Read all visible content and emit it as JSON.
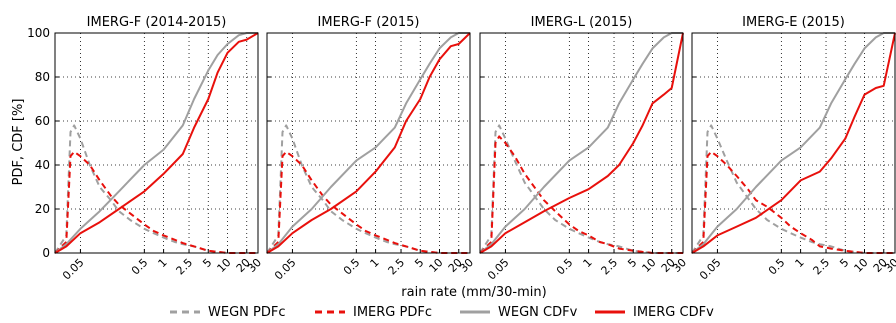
{
  "figure": {
    "ylabel": "PDF, CDF [%]",
    "xlabel": "rain rate (mm/30-min)",
    "legend_placement": "bottom-center",
    "legend": [
      {
        "label": "WEGN PDFc",
        "color": "#a0a0a0",
        "dash": true
      },
      {
        "label": "IMERG PDFc",
        "color": "#e8100c",
        "dash": true
      },
      {
        "label": "WEGN CDFv",
        "color": "#a0a0a0",
        "dash": false
      },
      {
        "label": "IMERG CDFv",
        "color": "#e8100c",
        "dash": false
      }
    ]
  },
  "chart_data": [
    {
      "type": "line",
      "title": "IMERG-F (2014-2015)",
      "x_scale": "log",
      "xlim": [
        0.02,
        30
      ],
      "ylim": [
        0,
        100
      ],
      "grid": true,
      "x_ticks": [
        "0.05",
        "0.5",
        "1",
        "2.5",
        "5",
        "10",
        "20",
        "30"
      ],
      "y_ticks": [
        "0",
        "20",
        "40",
        "60",
        "80",
        "100"
      ],
      "series": [
        {
          "name": "WEGN PDFc",
          "x": [
            0.02,
            0.03,
            0.035,
            0.04,
            0.05,
            0.07,
            0.1,
            0.15,
            0.2,
            0.3,
            0.5,
            0.7,
            1,
            1.5,
            2,
            3,
            5,
            10,
            30
          ],
          "y": [
            0,
            8,
            55,
            58,
            52,
            40,
            30,
            24,
            19,
            15,
            11,
            9,
            7,
            5,
            4,
            3,
            1,
            0,
            0
          ]
        },
        {
          "name": "IMERG PDFc",
          "x": [
            0.02,
            0.03,
            0.035,
            0.04,
            0.05,
            0.07,
            0.1,
            0.15,
            0.2,
            0.3,
            0.5,
            0.7,
            1,
            1.5,
            2,
            3,
            5,
            10,
            30
          ],
          "y": [
            0,
            5,
            44,
            46,
            44,
            40,
            33,
            26,
            22,
            18,
            13,
            10,
            8,
            6,
            4.5,
            3,
            1,
            0,
            0
          ]
        },
        {
          "name": "WEGN CDFv",
          "x": [
            0.02,
            0.03,
            0.05,
            0.1,
            0.2,
            0.5,
            1,
            2,
            3,
            5,
            7,
            10,
            15,
            20,
            30
          ],
          "y": [
            0,
            4,
            11,
            19,
            28,
            40,
            47,
            58,
            70,
            83,
            90,
            95,
            99,
            100,
            100
          ]
        },
        {
          "name": "IMERG CDFv",
          "x": [
            0.02,
            0.03,
            0.05,
            0.1,
            0.2,
            0.5,
            1,
            2,
            3,
            5,
            7,
            10,
            15,
            20,
            30
          ],
          "y": [
            0,
            3,
            9,
            14,
            20,
            28,
            36,
            45,
            57,
            70,
            82,
            91,
            96,
            97,
            100
          ]
        }
      ]
    },
    {
      "type": "line",
      "title": "IMERG-F (2015)",
      "x_scale": "log",
      "xlim": [
        0.02,
        30
      ],
      "ylim": [
        0,
        100
      ],
      "grid": true,
      "x_ticks": [
        "0.05",
        "0.5",
        "1",
        "2.5",
        "5",
        "10",
        "20",
        "30"
      ],
      "y_ticks": [
        "0",
        "20",
        "40",
        "60",
        "80",
        "100"
      ],
      "series": [
        {
          "name": "WEGN PDFc",
          "x": [
            0.02,
            0.03,
            0.035,
            0.04,
            0.05,
            0.07,
            0.1,
            0.15,
            0.2,
            0.3,
            0.5,
            0.7,
            1,
            1.5,
            2,
            3,
            5,
            10,
            30
          ],
          "y": [
            0,
            8,
            55,
            58,
            52,
            40,
            30,
            24,
            19,
            15,
            11,
            9,
            7,
            5,
            4,
            3,
            1,
            0,
            0
          ]
        },
        {
          "name": "IMERG PDFc",
          "x": [
            0.02,
            0.03,
            0.035,
            0.04,
            0.05,
            0.07,
            0.1,
            0.15,
            0.2,
            0.3,
            0.5,
            0.7,
            1,
            1.5,
            2,
            3,
            5,
            10,
            30
          ],
          "y": [
            0,
            5,
            44,
            46,
            44,
            40,
            33,
            26,
            22,
            18,
            13,
            10,
            8,
            6,
            4.5,
            3,
            1,
            0,
            0
          ]
        },
        {
          "name": "WEGN CDFv",
          "x": [
            0.02,
            0.03,
            0.05,
            0.1,
            0.2,
            0.5,
            1,
            2,
            3,
            5,
            7,
            10,
            15,
            20,
            30
          ],
          "y": [
            0,
            4,
            12,
            20,
            30,
            42,
            48,
            57,
            68,
            79,
            86,
            93,
            98,
            100,
            100
          ]
        },
        {
          "name": "IMERG CDFv",
          "x": [
            0.02,
            0.03,
            0.05,
            0.1,
            0.2,
            0.5,
            1,
            2,
            3,
            5,
            7,
            10,
            15,
            20,
            30
          ],
          "y": [
            0,
            3,
            9,
            15,
            20,
            28,
            37,
            48,
            60,
            70,
            80,
            88,
            94,
            95,
            100
          ]
        }
      ]
    },
    {
      "type": "line",
      "title": "IMERG-L (2015)",
      "x_scale": "log",
      "xlim": [
        0.02,
        30
      ],
      "ylim": [
        0,
        100
      ],
      "grid": true,
      "x_ticks": [
        "0.05",
        "0.5",
        "1",
        "2.5",
        "5",
        "10",
        "20",
        "30"
      ],
      "y_ticks": [
        "0",
        "20",
        "40",
        "60",
        "80",
        "100"
      ],
      "series": [
        {
          "name": "WEGN PDFc",
          "x": [
            0.02,
            0.03,
            0.035,
            0.04,
            0.05,
            0.07,
            0.1,
            0.15,
            0.2,
            0.3,
            0.5,
            0.7,
            1,
            1.5,
            2,
            3,
            5,
            10,
            30
          ],
          "y": [
            0,
            8,
            55,
            58,
            52,
            42,
            32,
            25,
            20,
            15,
            11,
            9,
            7,
            5,
            4,
            3,
            1,
            0,
            0
          ]
        },
        {
          "name": "IMERG PDFc",
          "x": [
            0.02,
            0.03,
            0.035,
            0.04,
            0.05,
            0.07,
            0.1,
            0.15,
            0.2,
            0.3,
            0.5,
            0.7,
            1,
            1.5,
            2,
            3,
            5,
            10,
            30
          ],
          "y": [
            0,
            5,
            50,
            53,
            50,
            44,
            36,
            29,
            24,
            19,
            13,
            10,
            8,
            5,
            4,
            2,
            1,
            0,
            0
          ]
        },
        {
          "name": "WEGN CDFv",
          "x": [
            0.02,
            0.03,
            0.05,
            0.1,
            0.2,
            0.5,
            1,
            2,
            3,
            5,
            7,
            10,
            15,
            20,
            30
          ],
          "y": [
            0,
            4,
            12,
            20,
            30,
            42,
            48,
            57,
            68,
            79,
            86,
            93,
            98,
            100,
            100
          ]
        },
        {
          "name": "IMERG CDFv",
          "x": [
            0.02,
            0.03,
            0.05,
            0.1,
            0.2,
            0.5,
            1,
            2,
            3,
            5,
            7,
            10,
            15,
            20,
            30
          ],
          "y": [
            0,
            3,
            9,
            14,
            19,
            25,
            29,
            35,
            40,
            50,
            58,
            68,
            72,
            75,
            100
          ]
        }
      ]
    },
    {
      "type": "line",
      "title": "IMERG-E (2015)",
      "x_scale": "log",
      "xlim": [
        0.02,
        30
      ],
      "ylim": [
        0,
        100
      ],
      "grid": true,
      "x_ticks": [
        "0.05",
        "0.5",
        "1",
        "2.5",
        "5",
        "10",
        "20",
        "30"
      ],
      "y_ticks": [
        "0",
        "20",
        "40",
        "60",
        "80",
        "100"
      ],
      "series": [
        {
          "name": "WEGN PDFc",
          "x": [
            0.02,
            0.03,
            0.035,
            0.04,
            0.05,
            0.07,
            0.1,
            0.15,
            0.2,
            0.3,
            0.5,
            0.7,
            1,
            1.5,
            2,
            3,
            5,
            10,
            30
          ],
          "y": [
            0,
            8,
            55,
            58,
            52,
            42,
            32,
            25,
            20,
            15,
            11,
            9,
            7,
            5,
            4,
            3,
            1,
            0,
            0
          ]
        },
        {
          "name": "IMERG PDFc",
          "x": [
            0.02,
            0.03,
            0.035,
            0.04,
            0.05,
            0.07,
            0.1,
            0.15,
            0.2,
            0.3,
            0.5,
            0.7,
            1,
            1.5,
            2,
            3,
            5,
            10,
            30
          ],
          "y": [
            0,
            5,
            44,
            46,
            44,
            40,
            35,
            29,
            24,
            21,
            16,
            12,
            9,
            6,
            3,
            2,
            1,
            0,
            0
          ]
        },
        {
          "name": "WEGN CDFv",
          "x": [
            0.02,
            0.03,
            0.05,
            0.1,
            0.2,
            0.5,
            1,
            2,
            3,
            5,
            7,
            10,
            15,
            20,
            30
          ],
          "y": [
            0,
            4,
            12,
            20,
            30,
            42,
            48,
            57,
            68,
            79,
            86,
            93,
            98,
            100,
            100
          ]
        },
        {
          "name": "IMERG CDFv",
          "x": [
            0.02,
            0.03,
            0.05,
            0.1,
            0.2,
            0.5,
            1,
            2,
            3,
            5,
            7,
            10,
            15,
            20,
            30
          ],
          "y": [
            0,
            3,
            8,
            12,
            16,
            24,
            33,
            37,
            43,
            52,
            62,
            72,
            75,
            76,
            100
          ]
        }
      ]
    }
  ]
}
